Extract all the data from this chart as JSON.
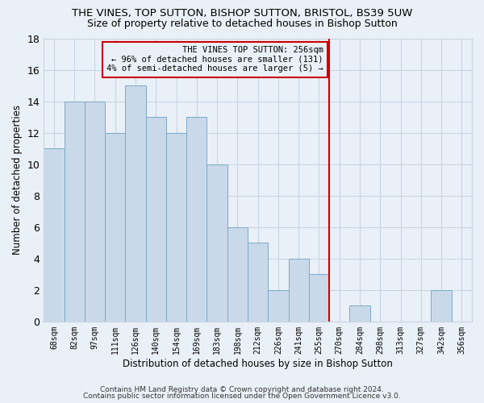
{
  "title": "THE VINES, TOP SUTTON, BISHOP SUTTON, BRISTOL, BS39 5UW",
  "subtitle": "Size of property relative to detached houses in Bishop Sutton",
  "xlabel": "Distribution of detached houses by size in Bishop Sutton",
  "ylabel": "Number of detached properties",
  "bar_labels": [
    "68sqm",
    "82sqm",
    "97sqm",
    "111sqm",
    "126sqm",
    "140sqm",
    "154sqm",
    "169sqm",
    "183sqm",
    "198sqm",
    "212sqm",
    "226sqm",
    "241sqm",
    "255sqm",
    "270sqm",
    "284sqm",
    "298sqm",
    "313sqm",
    "327sqm",
    "342sqm",
    "356sqm"
  ],
  "bar_heights": [
    11,
    14,
    14,
    12,
    15,
    13,
    12,
    13,
    10,
    6,
    5,
    2,
    4,
    3,
    0,
    1,
    0,
    0,
    0,
    2,
    0
  ],
  "bar_color": "#c9d9ea",
  "bar_edge_color": "#7aaac8",
  "vline_x_index": 13.5,
  "vline_color": "#cc0000",
  "annotation_text": "THE VINES TOP SUTTON: 256sqm\n← 96% of detached houses are smaller (131)\n4% of semi-detached houses are larger (5) →",
  "annotation_box_color": "#cc0000",
  "ylim": [
    0,
    18
  ],
  "yticks": [
    0,
    2,
    4,
    6,
    8,
    10,
    12,
    14,
    16,
    18
  ],
  "grid_color": "#c8d4e4",
  "bg_color": "#eaf0f8",
  "footer1": "Contains HM Land Registry data © Crown copyright and database right 2024.",
  "footer2": "Contains public sector information licensed under the Open Government Licence v3.0.",
  "title_fontsize": 9.5,
  "subtitle_fontsize": 9
}
